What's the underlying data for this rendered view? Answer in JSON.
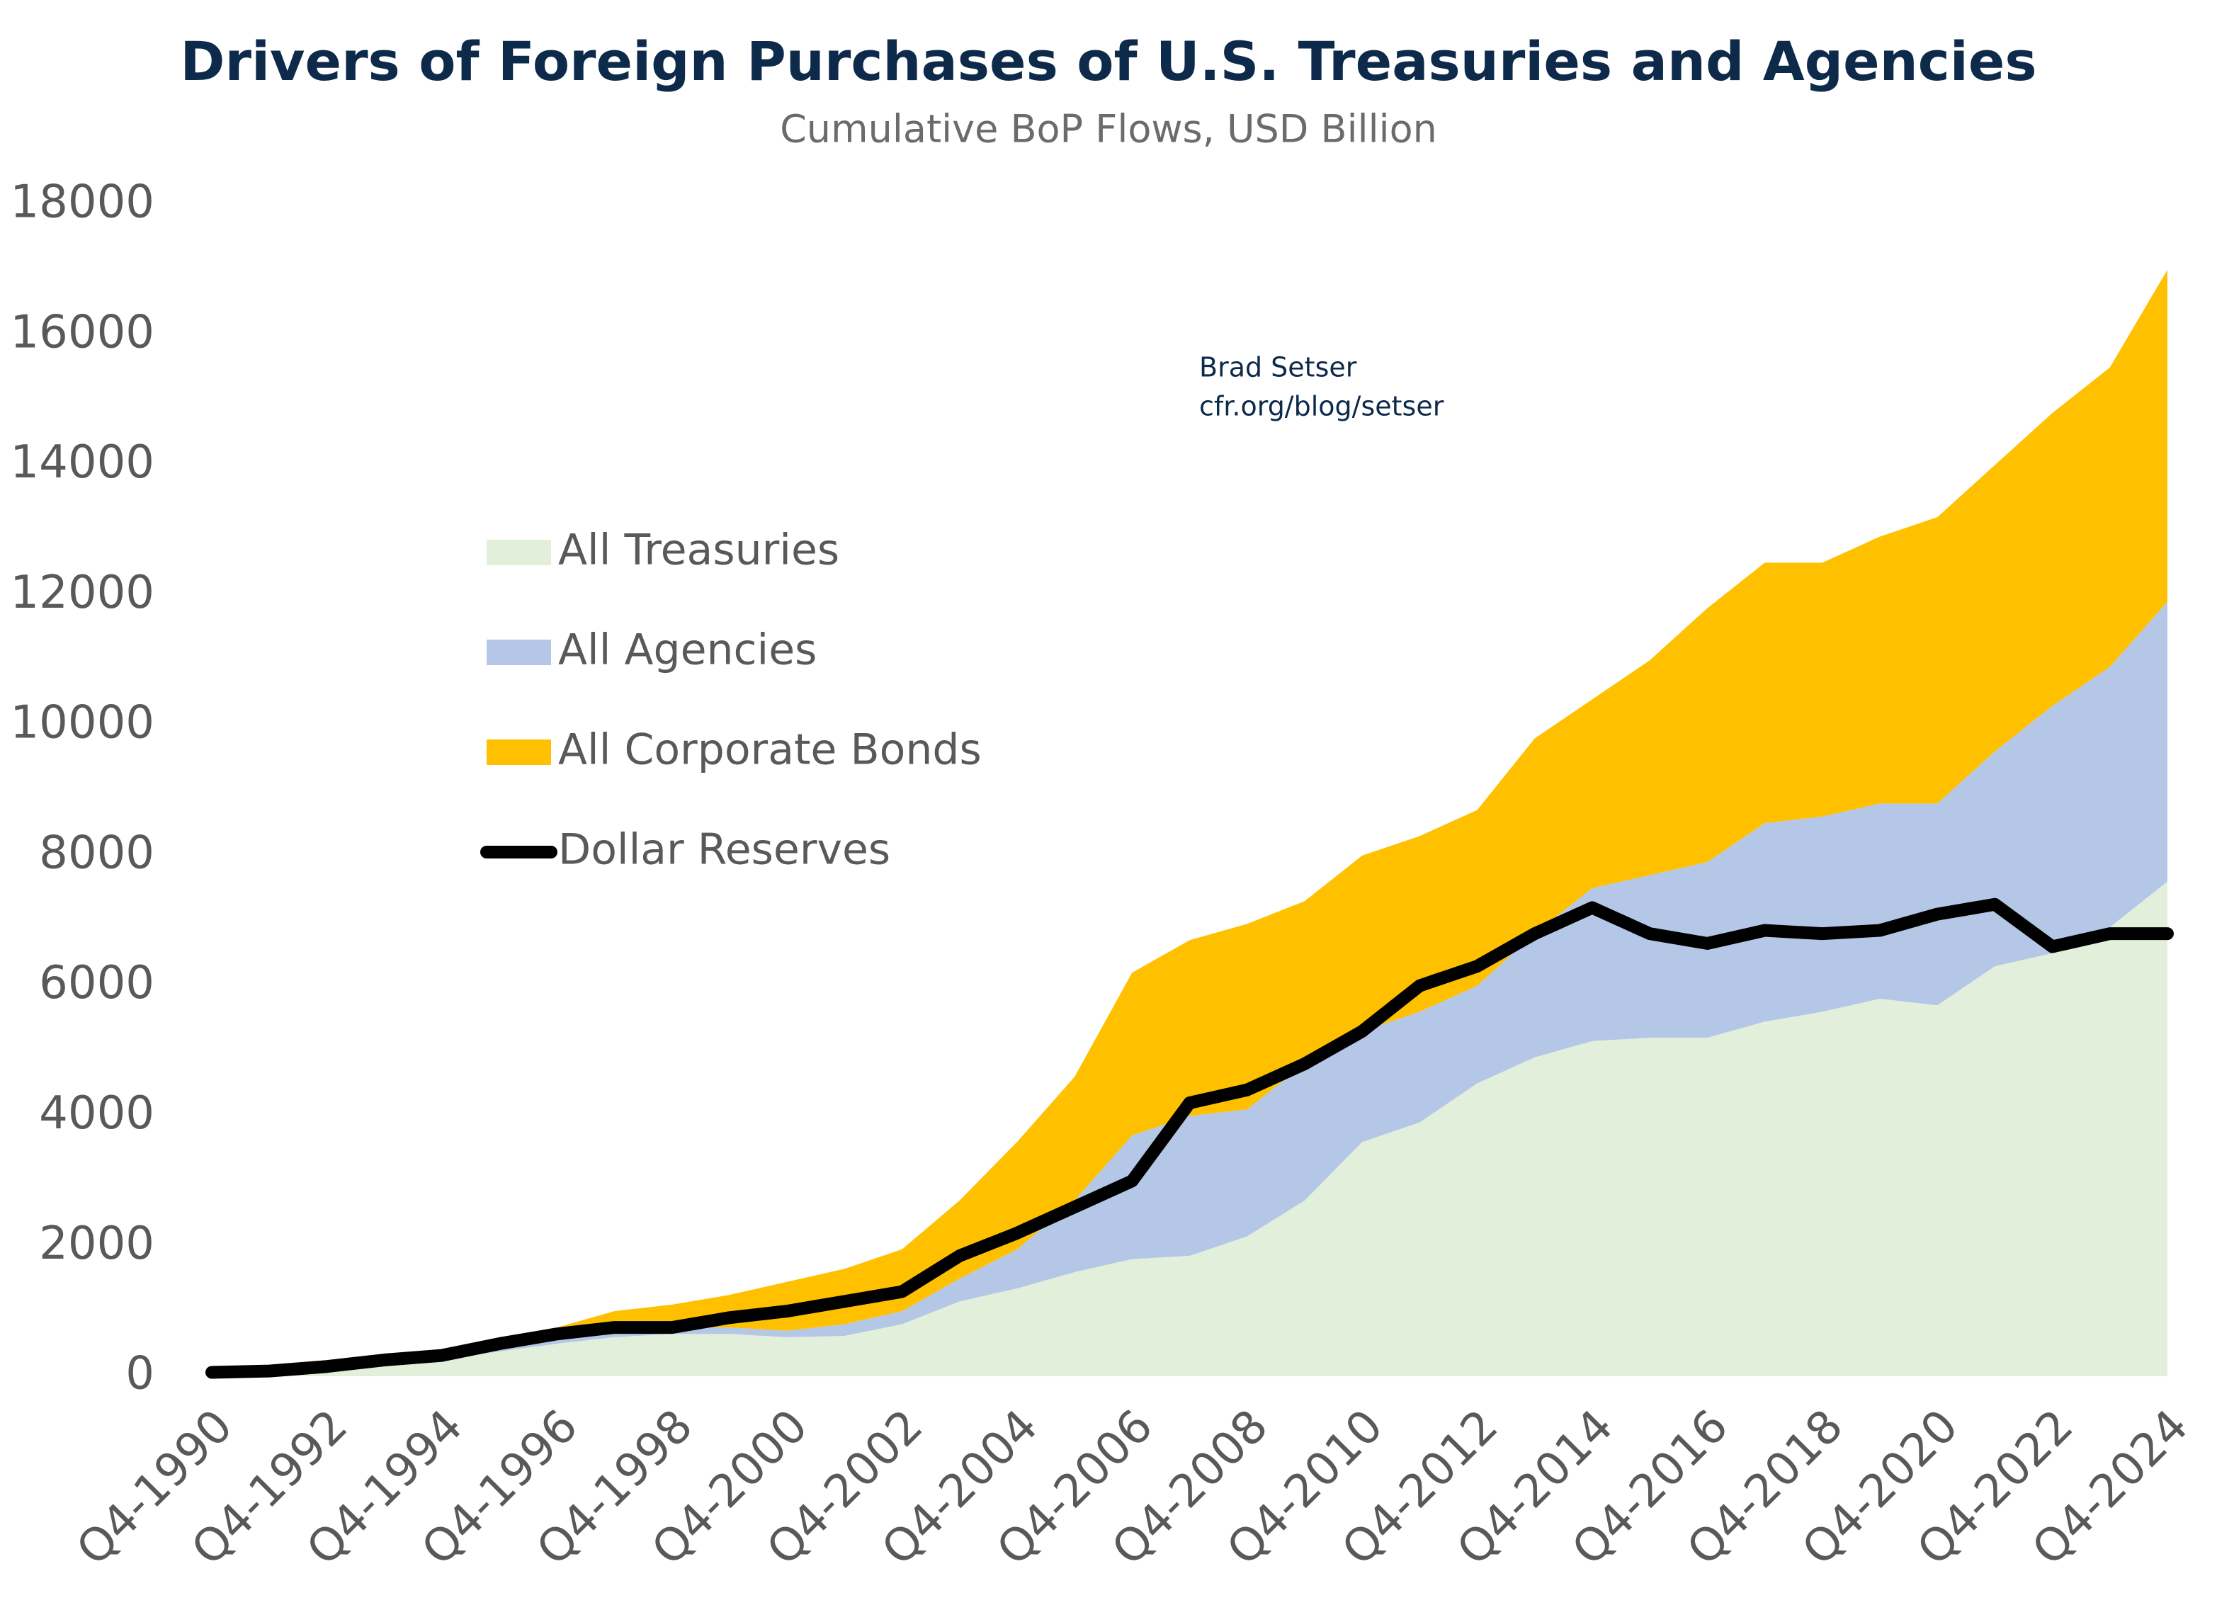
{
  "chart_data": {
    "type": "area",
    "title": "Drivers of Foreign Purchases of U.S. Treasuries and Agencies",
    "subtitle": "Cumulative BoP Flows, USD Billion",
    "annotation": [
      "Brad Setser",
      "cfr.org/blog/setser"
    ],
    "categories": [
      "Q4-1990",
      null,
      "Q4-1992",
      null,
      "Q4-1994",
      null,
      "Q4-1996",
      null,
      "Q4-1998",
      null,
      "Q4-2000",
      null,
      "Q4-2002",
      null,
      "Q4-2004",
      null,
      "Q4-2006",
      null,
      "Q4-2008",
      null,
      "Q4-2010",
      null,
      "Q4-2012",
      null,
      "Q4-2014",
      null,
      "Q4-2016",
      null,
      "Q4-2018",
      null,
      "Q4-2020",
      null,
      "Q4-2022",
      null,
      "Q4-2024"
    ],
    "series": [
      {
        "name": "All Treasuries",
        "type": "area",
        "color": "#e2efda",
        "values": [
          50,
          70,
          120,
          200,
          260,
          380,
          500,
          600,
          650,
          650,
          600,
          620,
          800,
          1150,
          1350,
          1600,
          1800,
          1850,
          2150,
          2700,
          3600,
          3900,
          4500,
          4900,
          5150,
          5200,
          5200,
          5450,
          5600,
          5800,
          5700,
          6300,
          6500,
          6900,
          7600
        ]
      },
      {
        "name": "All Agencies",
        "type": "area",
        "color": "#b4c7e7",
        "values": [
          0,
          5,
          20,
          30,
          40,
          70,
          100,
          100,
          100,
          100,
          100,
          180,
          200,
          350,
          600,
          1100,
          1900,
          2150,
          1950,
          2100,
          1700,
          1700,
          1500,
          1900,
          2350,
          2500,
          2700,
          3050,
          3000,
          3000,
          3100,
          3300,
          3800,
          4000,
          4300
        ]
      },
      {
        "name": "All Corporate Bonds",
        "type": "area",
        "color": "#ffc000",
        "values": [
          5,
          5,
          10,
          20,
          20,
          100,
          150,
          300,
          350,
          500,
          750,
          850,
          950,
          1200,
          1650,
          1900,
          2500,
          2700,
          2850,
          2500,
          2700,
          2700,
          2700,
          3000,
          2900,
          3300,
          3900,
          4000,
          3900,
          4100,
          4400,
          4400,
          4500,
          4600,
          5100
        ]
      },
      {
        "name": "Dollar Reserves",
        "type": "line",
        "color": "#000000",
        "values": [
          60,
          80,
          150,
          250,
          320,
          500,
          650,
          750,
          750,
          900,
          1000,
          1150,
          1300,
          1850,
          2200,
          2600,
          3000,
          4200,
          4400,
          4800,
          5300,
          6000,
          6300,
          6800,
          7200,
          6800,
          6650,
          6850,
          6800,
          6850,
          7100,
          7250,
          6600,
          6800,
          6800
        ]
      }
    ],
    "ylim": [
      0,
      18000
    ],
    "yticks": [
      0,
      2000,
      4000,
      6000,
      8000,
      10000,
      12000,
      14000,
      16000,
      18000
    ],
    "grid": false
  }
}
